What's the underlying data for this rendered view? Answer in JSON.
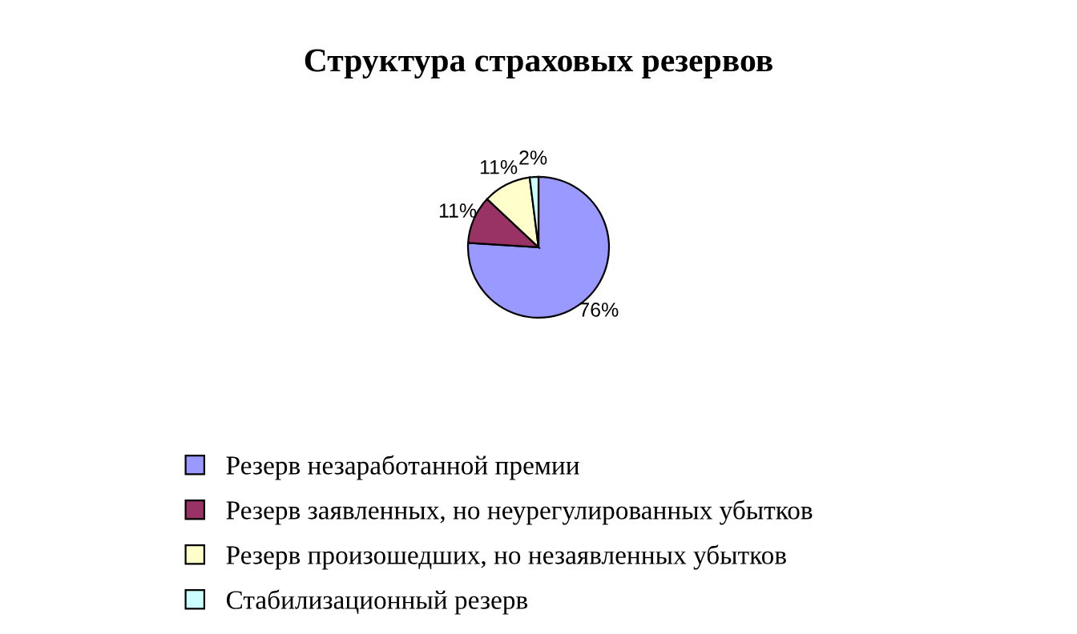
{
  "chart_data": {
    "type": "pie",
    "title": "Структура страховых резервов",
    "categories": [
      "Резерв незаработанной премии",
      "Резерв заявленных, но неурегулированных убытков",
      "Резерв произошедших, но незаявленных убытков",
      "Стабилизационный резерв"
    ],
    "values": [
      76,
      11,
      11,
      2
    ],
    "colors": [
      "#9999ff",
      "#993366",
      "#ffffcc",
      "#ccffff"
    ],
    "value_labels": [
      "76%",
      "11%",
      "11%",
      "2%"
    ],
    "legend": "bottom"
  }
}
